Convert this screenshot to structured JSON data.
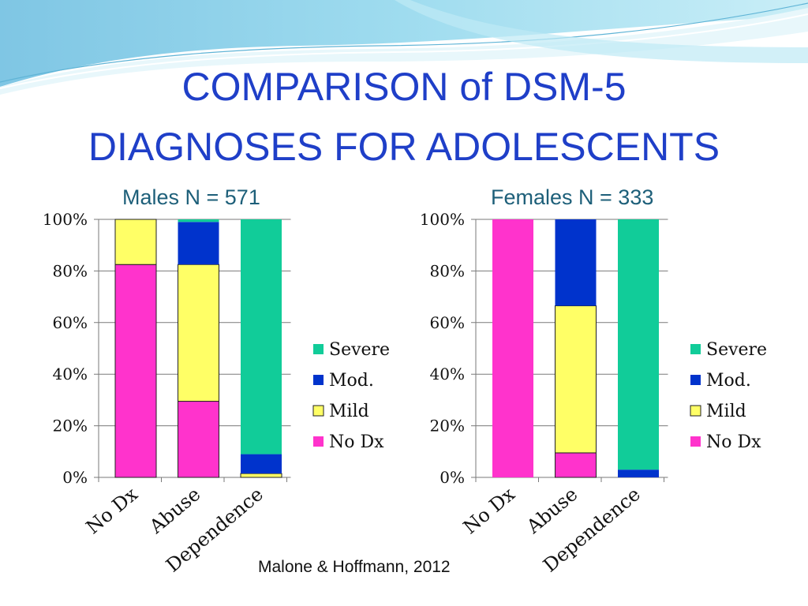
{
  "title_line1": "COMPARISON of DSM-5",
  "title_line2": "DIAGNOSES FOR ADOLESCENTS",
  "source": "Malone & Hoffmann, 2012",
  "colors": {
    "No Dx": "#ff33cc",
    "Mild": "#ffff66",
    "Mod.": "#0033cc",
    "Severe": "#11cc99"
  },
  "chart_data": [
    {
      "type": "bar",
      "stacked": true,
      "title": "Males  N = 571",
      "categories": [
        "No Dx",
        "Abuse",
        "Dependence"
      ],
      "ylim": [
        0,
        100
      ],
      "yticks": [
        "0%",
        "20%",
        "40%",
        "60%",
        "80%",
        "100%"
      ],
      "legend_position": "right",
      "series": [
        {
          "name": "No Dx",
          "values": [
            82.5,
            29.5,
            0
          ]
        },
        {
          "name": "Mild",
          "values": [
            17.5,
            53,
            1.5
          ]
        },
        {
          "name": "Mod.",
          "values": [
            0,
            16.5,
            7.5
          ]
        },
        {
          "name": "Severe",
          "values": [
            0,
            1,
            91
          ]
        }
      ]
    },
    {
      "type": "bar",
      "stacked": true,
      "title": "Females  N = 333",
      "categories": [
        "No Dx",
        "Abuse",
        "Dependence"
      ],
      "ylim": [
        0,
        100
      ],
      "yticks": [
        "0%",
        "20%",
        "40%",
        "60%",
        "80%",
        "100%"
      ],
      "legend_position": "right",
      "series": [
        {
          "name": "No Dx",
          "values": [
            100,
            9.5,
            0
          ]
        },
        {
          "name": "Mild",
          "values": [
            0,
            57,
            0
          ]
        },
        {
          "name": "Mod.",
          "values": [
            0,
            33.5,
            3
          ]
        },
        {
          "name": "Severe",
          "values": [
            0,
            0,
            97
          ]
        }
      ]
    }
  ]
}
